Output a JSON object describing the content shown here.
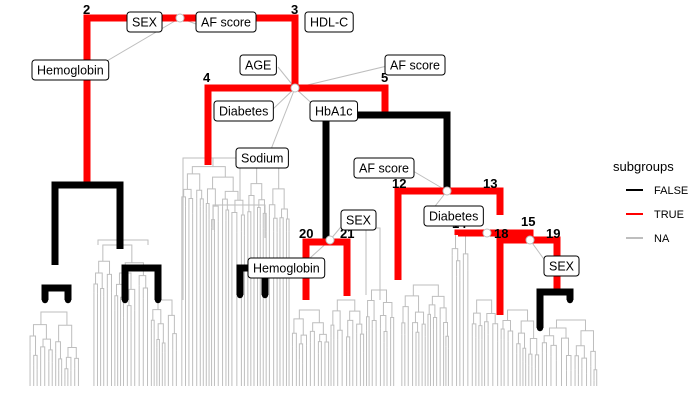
{
  "chart_data": {
    "type": "dendrogram",
    "legend": {
      "title": "subgroups",
      "position": "right",
      "entries": [
        {
          "label": "FALSE",
          "color": "#000000"
        },
        {
          "label": "TRUE",
          "color": "#ff0000"
        },
        {
          "label": "NA",
          "color": "#bebebe"
        }
      ]
    },
    "node_labels": [
      "2",
      "3",
      "4",
      "5",
      "12",
      "13",
      "14",
      "15",
      "18",
      "19",
      "20",
      "21"
    ],
    "split_labels": [
      "SEX",
      "AF score",
      "HDL-C",
      "Hemoglobin",
      "AGE",
      "AF score",
      "Diabetes",
      "HbA1c",
      "Sodium",
      "AF score",
      "SEX",
      "Diabetes",
      "SEX",
      "Hemoglobin"
    ]
  }
}
